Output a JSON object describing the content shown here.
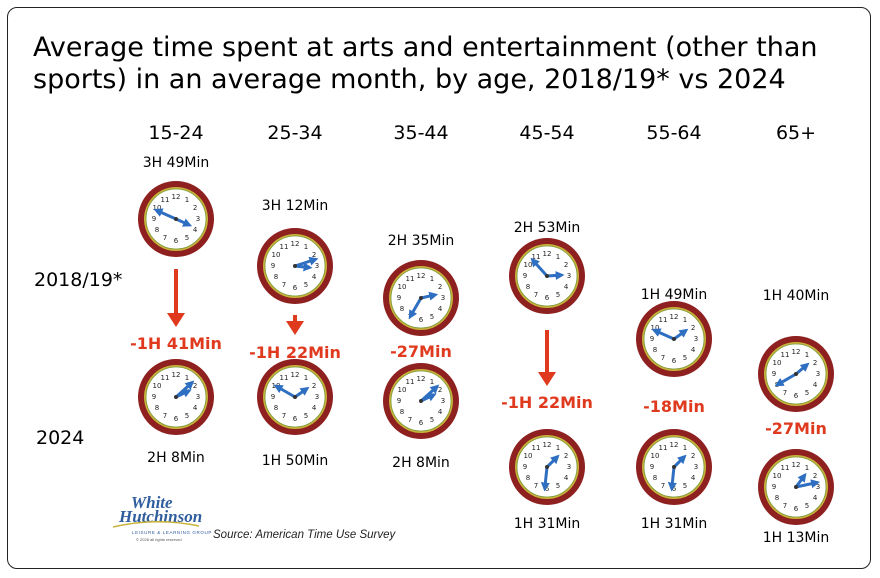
{
  "chart_data": {
    "type": "clock-comparison",
    "title": "Average time spent at arts and entertainment (other than sports) in an average month, by age, 2018/19* vs 2024",
    "title_lines": [
      "Average time spent at arts and entertainment (other than",
      "sports) in an average month, by age, 2018/19* vs 2024"
    ],
    "row_labels": [
      "2018/19*",
      "2024"
    ],
    "unit": "minutes per month",
    "categories": [
      "15-24",
      "25-34",
      "35-44",
      "45-54",
      "55-64",
      "65+"
    ],
    "series": [
      {
        "name": "2018/19*",
        "values": [
          229,
          192,
          155,
          173,
          109,
          100
        ],
        "labels": [
          "3H 49Min",
          "3H 12Min",
          "2H 35Min",
          "2H 53Min",
          "1H 49Min",
          "1H 40Min"
        ]
      },
      {
        "name": "2024",
        "values": [
          128,
          110,
          128,
          91,
          91,
          73
        ],
        "labels": [
          "2H 8Min",
          "1H 50Min",
          "2H 8Min",
          "1H 31Min",
          "1H 31Min",
          "1H 13Min"
        ]
      }
    ],
    "differences": [
      "-1H 41Min",
      "-1H 22Min",
      "-27Min",
      "-1H 22Min",
      "-18Min",
      "-27Min"
    ],
    "arrow_categories": [
      "15-24",
      "25-34",
      "45-54"
    ],
    "colors": {
      "hands": "#2f6fc2",
      "decline": "#e03a1e",
      "rim": "#8e2020",
      "ring": "#c8b23a"
    }
  },
  "source": "Source: American Time Use Survey",
  "logo": {
    "line1": "White",
    "line2": "Hutchinson",
    "tagline": "LEISURE & LEARNING GROUP",
    "copyright": "© 2026 all rights reserved"
  }
}
